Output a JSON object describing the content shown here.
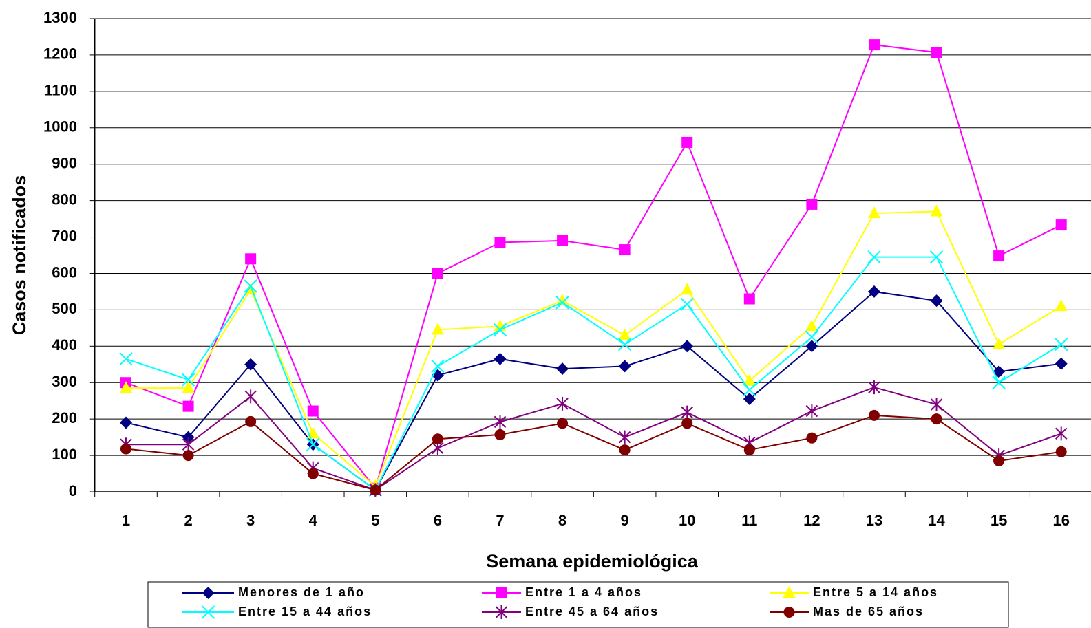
{
  "chart_data": {
    "type": "line",
    "x_label": "Semana epidemiológica",
    "y_label": "Casos notificados",
    "categories": [
      "1",
      "2",
      "3",
      "4",
      "5",
      "6",
      "7",
      "8",
      "9",
      "10",
      "11",
      "12",
      "13",
      "14",
      "15",
      "16"
    ],
    "ylim": [
      0,
      1300
    ],
    "yticks": [
      0,
      100,
      200,
      300,
      400,
      500,
      600,
      700,
      800,
      900,
      1000,
      1100,
      1200,
      1300
    ],
    "grid": true,
    "series": [
      {
        "name": "Menores de 1 año",
        "color": "#000080",
        "marker": "diamond",
        "values": [
          190,
          150,
          350,
          130,
          5,
          320,
          365,
          338,
          345,
          400,
          255,
          400,
          550,
          525,
          330,
          352
        ]
      },
      {
        "name": "Entre 1 a 4 años",
        "color": "#ff00ff",
        "marker": "square",
        "values": [
          300,
          235,
          640,
          222,
          10,
          600,
          685,
          690,
          665,
          960,
          530,
          790,
          1228,
          1207,
          648,
          733
        ]
      },
      {
        "name": "Entre 5 a 14 años",
        "color": "#ffff00",
        "marker": "triangle",
        "values": [
          285,
          285,
          555,
          160,
          15,
          445,
          455,
          525,
          430,
          555,
          305,
          455,
          765,
          770,
          405,
          510
        ]
      },
      {
        "name": "Entre 15 a 44 años",
        "color": "#00ffff",
        "marker": "x",
        "values": [
          365,
          308,
          565,
          130,
          5,
          345,
          445,
          520,
          405,
          515,
          280,
          425,
          645,
          645,
          300,
          405
        ]
      },
      {
        "name": "Entre 45 a 64 años",
        "color": "#800080",
        "marker": "star",
        "values": [
          130,
          130,
          262,
          65,
          5,
          120,
          192,
          242,
          150,
          218,
          135,
          222,
          287,
          240,
          100,
          160
        ]
      },
      {
        "name": "Mas de 65 años",
        "color": "#800000",
        "marker": "circle",
        "values": [
          118,
          100,
          193,
          50,
          5,
          145,
          157,
          188,
          115,
          188,
          115,
          148,
          210,
          200,
          85,
          110
        ]
      }
    ]
  }
}
